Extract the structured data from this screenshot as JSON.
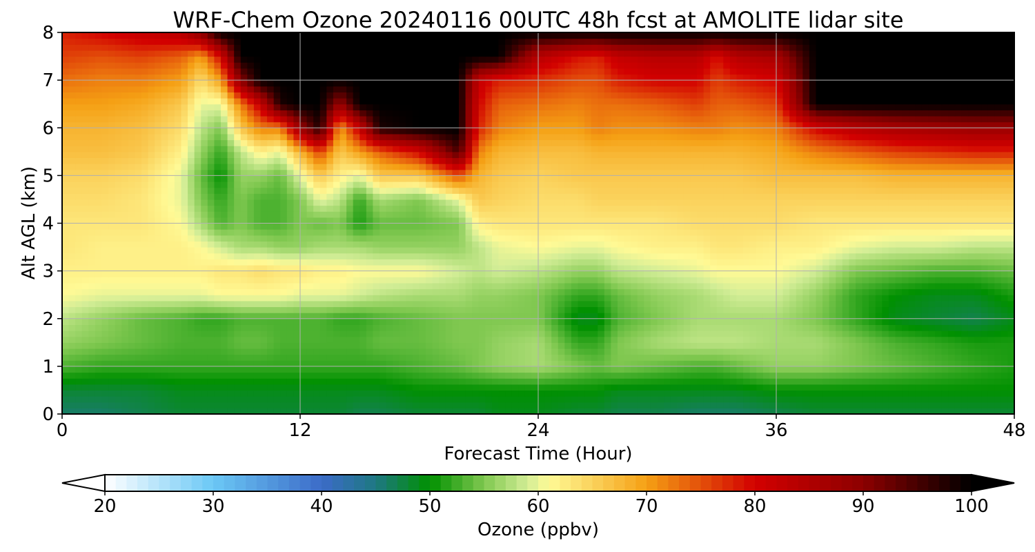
{
  "chart_data": {
    "type": "heatmap",
    "title": "WRF-Chem Ozone  20240116 00UTC 48h fcst at AMOLITE lidar site",
    "xlabel": "Forecast Time (Hour)",
    "ylabel": "Alt AGL (km)",
    "xlim": [
      0,
      48
    ],
    "ylim": [
      0,
      8
    ],
    "x_ticks": [
      0,
      12,
      24,
      36,
      48
    ],
    "y_ticks": [
      0,
      1,
      2,
      3,
      4,
      5,
      6,
      7,
      8
    ],
    "grid": true,
    "x_hours": [
      0,
      2,
      4,
      6,
      7,
      8,
      9,
      10,
      11,
      12,
      13,
      14,
      15,
      16,
      18,
      20,
      21,
      22,
      24,
      26,
      27,
      28,
      30,
      32,
      33,
      34,
      36,
      38,
      40,
      42,
      44,
      46,
      48
    ],
    "y_km": [
      0,
      0.5,
      1,
      1.5,
      2,
      2.5,
      3,
      3.5,
      4,
      4.5,
      5,
      5.5,
      6,
      6.5,
      7,
      7.5,
      8
    ],
    "ozone_ppbv_rows_by_altitude": [
      [
        46,
        46,
        47,
        48,
        48,
        48,
        48,
        48,
        48,
        48,
        48,
        48,
        47,
        47,
        48,
        48,
        48,
        49,
        49,
        48,
        48,
        47,
        47,
        46,
        46,
        46,
        47,
        48,
        48,
        48,
        48,
        48,
        48
      ],
      [
        48,
        48,
        48,
        49,
        49,
        49,
        49,
        49,
        49,
        49,
        49,
        49,
        49,
        49,
        50,
        50,
        50,
        50,
        50,
        50,
        50,
        49,
        49,
        49,
        49,
        49,
        50,
        50,
        50,
        50,
        50,
        50,
        50
      ],
      [
        53,
        52,
        52,
        52,
        52,
        52,
        52,
        52,
        52,
        52,
        52,
        52,
        52,
        52,
        53,
        54,
        55,
        56,
        57,
        55,
        54,
        55,
        54,
        53,
        53,
        54,
        56,
        56,
        55,
        54,
        53,
        52,
        51
      ],
      [
        56,
        55,
        54,
        53,
        53,
        53,
        54,
        54,
        53,
        53,
        53,
        53,
        53,
        54,
        54,
        55,
        55,
        56,
        57,
        52,
        52,
        55,
        57,
        58,
        58,
        58,
        57,
        57,
        55,
        53,
        52,
        51,
        51
      ],
      [
        58,
        56,
        54,
        53,
        52,
        52,
        53,
        53,
        53,
        53,
        53,
        52,
        52,
        53,
        54,
        55,
        55,
        55,
        55,
        49,
        49,
        53,
        55,
        57,
        57,
        57,
        57,
        55,
        52,
        49,
        48,
        47,
        49
      ],
      [
        61,
        60,
        60,
        60,
        60,
        61,
        61,
        61,
        61,
        60,
        60,
        60,
        59,
        58,
        57,
        57,
        56,
        56,
        55,
        52,
        52,
        54,
        56,
        57,
        58,
        59,
        59,
        56,
        52,
        50,
        49,
        49,
        51
      ],
      [
        62,
        62,
        62,
        62,
        62,
        63,
        63,
        64,
        63,
        63,
        62,
        62,
        61,
        61,
        61,
        59,
        58,
        59,
        58,
        56,
        56,
        58,
        59,
        60,
        61,
        61,
        61,
        59,
        55,
        54,
        53,
        53,
        54
      ],
      [
        63,
        62,
        62,
        62,
        61,
        59,
        57,
        57,
        56,
        56,
        57,
        57,
        57,
        56,
        56,
        56,
        58,
        60,
        61,
        60,
        60,
        61,
        62,
        62,
        63,
        63,
        62,
        62,
        60,
        59,
        59,
        58,
        58
      ],
      [
        63,
        63,
        63,
        61,
        57,
        53,
        55,
        53,
        53,
        55,
        54,
        55,
        51,
        54,
        54,
        55,
        62,
        63,
        63,
        63,
        63,
        63,
        63,
        64,
        64,
        64,
        64,
        63,
        63,
        63,
        63,
        63,
        63
      ],
      [
        64,
        64,
        63,
        60,
        55,
        52,
        55,
        53,
        53,
        55,
        60,
        58,
        52,
        57,
        55,
        60,
        66,
        65,
        64,
        64,
        65,
        65,
        65,
        65,
        65,
        65,
        65,
        65,
        65,
        65,
        65,
        65,
        65
      ],
      [
        65,
        65,
        64,
        60,
        54,
        50,
        56,
        56,
        54,
        60,
        66,
        62,
        60,
        66,
        66,
        75,
        68,
        66,
        65,
        66,
        66,
        66,
        66,
        66,
        66,
        66,
        67,
        67,
        67,
        68,
        68,
        68,
        68
      ],
      [
        67,
        67,
        66,
        62,
        56,
        52,
        58,
        62,
        60,
        68,
        76,
        66,
        70,
        74,
        80,
        95,
        72,
        68,
        67,
        67,
        68,
        68,
        68,
        68,
        68,
        68,
        69,
        72,
        74,
        76,
        77,
        78,
        78
      ],
      [
        68,
        68,
        67,
        64,
        58,
        55,
        66,
        72,
        72,
        88,
        98,
        70,
        82,
        98,
        100,
        100,
        78,
        72,
        70,
        70,
        72,
        71,
        71,
        72,
        72,
        71,
        72,
        80,
        84,
        86,
        87,
        88,
        88
      ],
      [
        70,
        70,
        69,
        66,
        60,
        60,
        72,
        82,
        98,
        100,
        100,
        88,
        100,
        100,
        100,
        100,
        80,
        74,
        73,
        72,
        73,
        73,
        74,
        76,
        74,
        74,
        76,
        100,
        100,
        100,
        100,
        100,
        100
      ],
      [
        73,
        72,
        72,
        70,
        64,
        70,
        90,
        100,
        100,
        100,
        100,
        100,
        100,
        100,
        100,
        100,
        82,
        78,
        77,
        75,
        75,
        78,
        80,
        80,
        76,
        78,
        80,
        100,
        100,
        100,
        100,
        100,
        100
      ],
      [
        76,
        75,
        76,
        74,
        70,
        80,
        100,
        100,
        100,
        100,
        100,
        100,
        100,
        100,
        100,
        100,
        100,
        100,
        84,
        79,
        78,
        82,
        84,
        84,
        79,
        84,
        86,
        100,
        100,
        100,
        100,
        100,
        100
      ],
      [
        78,
        80,
        82,
        84,
        90,
        100,
        100,
        100,
        100,
        100,
        100,
        100,
        100,
        100,
        100,
        100,
        100,
        100,
        100,
        100,
        100,
        100,
        100,
        100,
        100,
        100,
        100,
        100,
        100,
        100,
        100,
        100,
        100
      ]
    ],
    "colorbar": {
      "label": "Ozone  (ppbv)",
      "ticks": [
        20,
        30,
        40,
        50,
        60,
        70,
        80,
        90,
        100
      ],
      "range": [
        20,
        100
      ],
      "extend": "both",
      "stops": [
        {
          "v": 20,
          "c": "#ffffff"
        },
        {
          "v": 30,
          "c": "#6bc8f5"
        },
        {
          "v": 40,
          "c": "#3c6bc8"
        },
        {
          "v": 45,
          "c": "#1e7882"
        },
        {
          "v": 50,
          "c": "#009000"
        },
        {
          "v": 55,
          "c": "#80c850"
        },
        {
          "v": 59,
          "c": "#d2ed96"
        },
        {
          "v": 61,
          "c": "#fffa96"
        },
        {
          "v": 70,
          "c": "#f5a014"
        },
        {
          "v": 80,
          "c": "#d20000"
        },
        {
          "v": 90,
          "c": "#8c0000"
        },
        {
          "v": 100,
          "c": "#000000"
        }
      ]
    }
  }
}
